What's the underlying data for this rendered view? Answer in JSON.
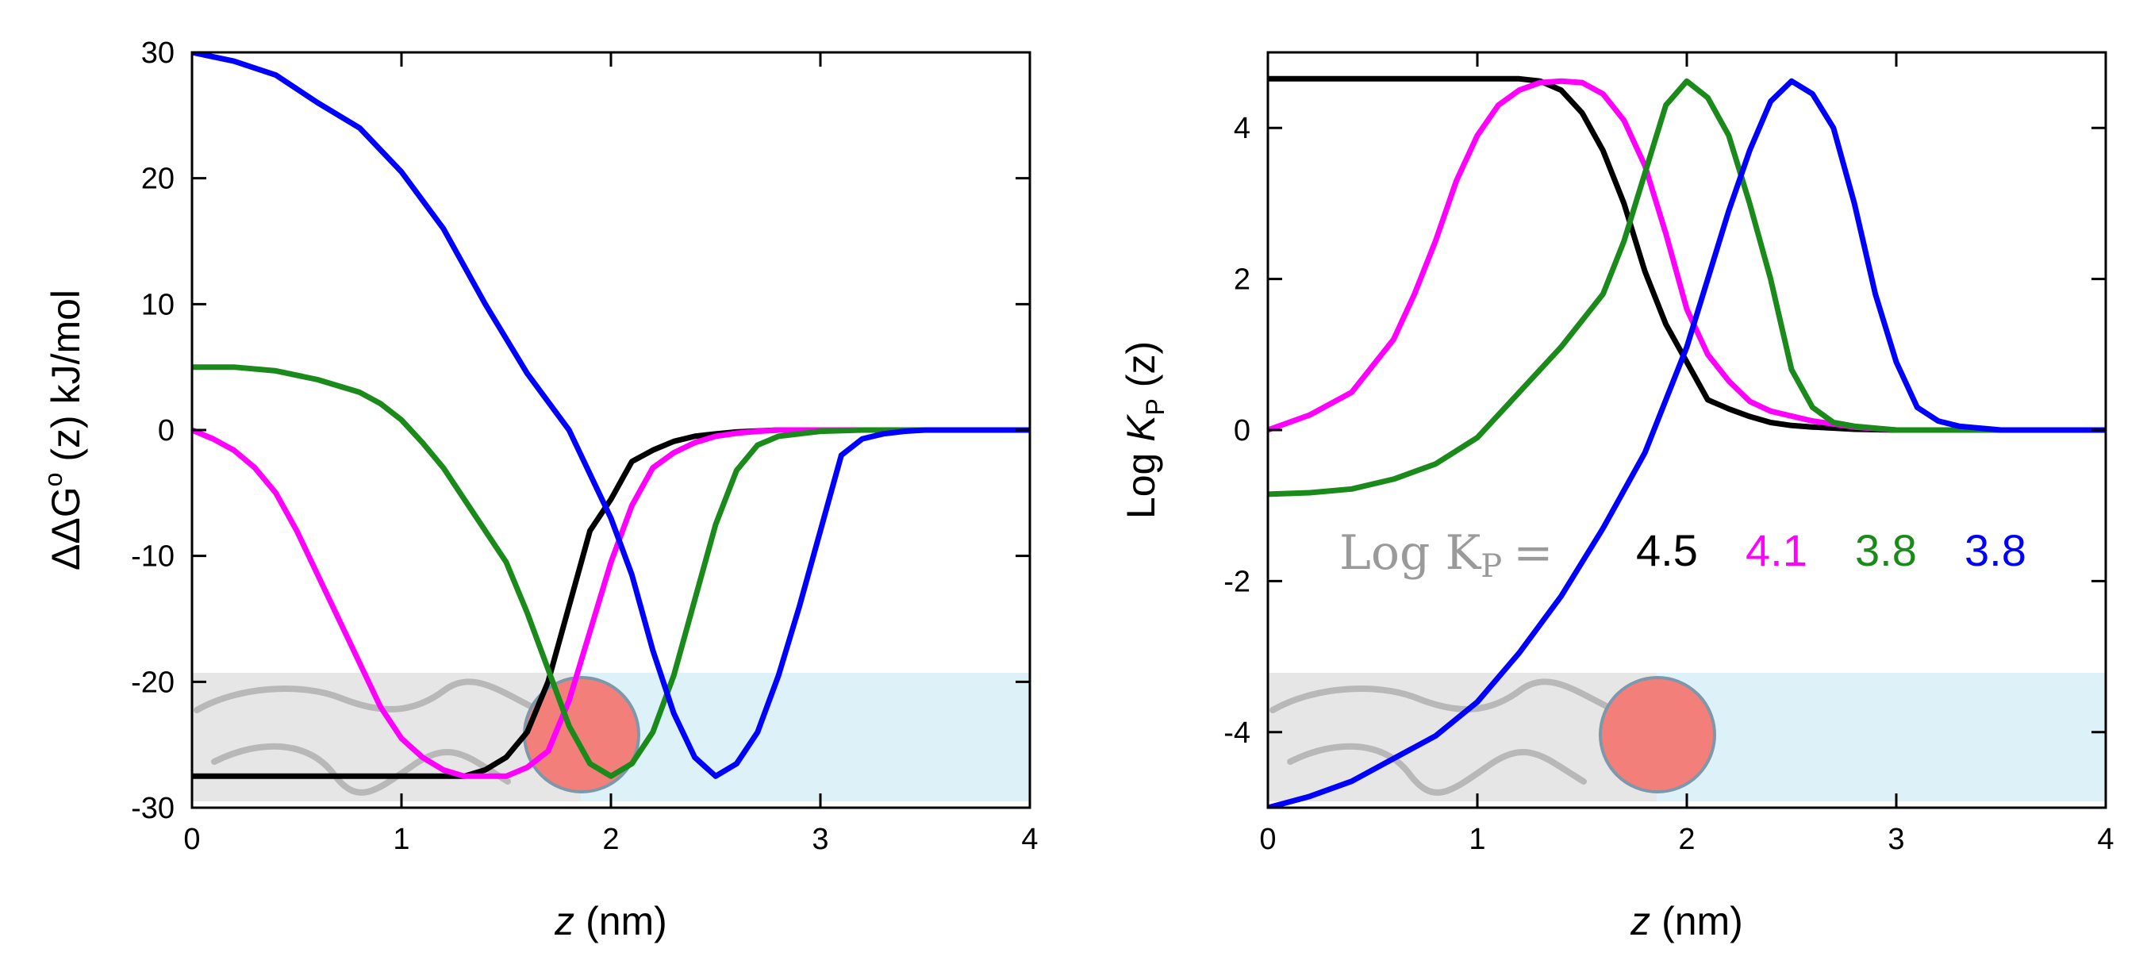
{
  "colors": {
    "black": "#000000",
    "magenta": "#ff00ff",
    "green": "#1a8a1a",
    "blue": "#0000ff",
    "water": "#dcf2f8",
    "membrane": "#e6e6e6",
    "lipid_tail": "#b8b8b8",
    "headgroup": "#f27f7a",
    "headgroup_stroke": "#7d98aa"
  },
  "icons": [
    "lipid-tails-illustration",
    "headgroup-circle"
  ],
  "chart_data": [
    {
      "type": "line",
      "xlabel_var": "z",
      "xlabel_unit": "(nm)",
      "ylabel_main": "ΔΔG",
      "ylabel_sup": "o",
      "ylabel_rest": " (z) kJ/mol",
      "xlim": [
        0,
        4
      ],
      "ylim": [
        -30,
        30
      ],
      "x_ticks": [
        "0",
        "1",
        "2",
        "3",
        "4"
      ],
      "y_ticks": [
        "30",
        "20",
        "10",
        "0",
        "-10",
        "-20",
        "-30"
      ],
      "grid": false,
      "series": [
        {
          "color": "black",
          "x": [
            0,
            0.5,
            1.0,
            1.3,
            1.4,
            1.5,
            1.6,
            1.7,
            1.8,
            1.9,
            2.0,
            2.1,
            2.2,
            2.3,
            2.4,
            2.5,
            2.6,
            2.8,
            3.0,
            4.0
          ],
          "y": [
            -27.5,
            -27.5,
            -27.5,
            -27.5,
            -27.0,
            -26.0,
            -24.0,
            -20.0,
            -14.0,
            -8.0,
            -5.5,
            -2.5,
            -1.6,
            -0.9,
            -0.5,
            -0.3,
            -0.15,
            0.0,
            0.0,
            0.0
          ]
        },
        {
          "color": "magenta",
          "x": [
            0,
            0.1,
            0.2,
            0.3,
            0.4,
            0.5,
            0.6,
            0.7,
            0.8,
            0.9,
            1.0,
            1.1,
            1.2,
            1.3,
            1.4,
            1.5,
            1.6,
            1.7,
            1.8,
            1.9,
            2.0,
            2.1,
            2.2,
            2.3,
            2.4,
            2.5,
            2.6,
            2.7,
            2.8,
            3.0,
            4.0
          ],
          "y": [
            0.0,
            -0.7,
            -1.6,
            -3.0,
            -5.0,
            -8.0,
            -11.5,
            -15.0,
            -18.5,
            -22.0,
            -24.5,
            -26.0,
            -27.0,
            -27.5,
            -27.5,
            -27.5,
            -26.8,
            -25.5,
            -21.5,
            -16.0,
            -10.5,
            -6.0,
            -3.0,
            -1.8,
            -1.0,
            -0.5,
            -0.25,
            -0.1,
            0.0,
            0.0,
            0.0
          ]
        },
        {
          "color": "green",
          "x": [
            0,
            0.2,
            0.4,
            0.6,
            0.8,
            0.9,
            1.0,
            1.1,
            1.2,
            1.3,
            1.4,
            1.5,
            1.6,
            1.7,
            1.8,
            1.9,
            2.0,
            2.1,
            2.2,
            2.3,
            2.4,
            2.5,
            2.6,
            2.7,
            2.8,
            3.0,
            3.2,
            4.0
          ],
          "y": [
            5.0,
            5.0,
            4.7,
            4.0,
            3.0,
            2.1,
            0.8,
            -1.0,
            -3.0,
            -5.5,
            -8.0,
            -10.5,
            -14.5,
            -19.0,
            -23.5,
            -26.5,
            -27.5,
            -26.5,
            -24.0,
            -19.5,
            -13.5,
            -7.5,
            -3.2,
            -1.2,
            -0.5,
            -0.1,
            0.0,
            0.0
          ]
        },
        {
          "color": "blue",
          "x": [
            0,
            0.2,
            0.4,
            0.6,
            0.8,
            1.0,
            1.2,
            1.4,
            1.6,
            1.8,
            1.9,
            2.0,
            2.1,
            2.2,
            2.3,
            2.4,
            2.5,
            2.6,
            2.7,
            2.8,
            2.9,
            3.0,
            3.1,
            3.2,
            3.3,
            3.4,
            3.5,
            4.0
          ],
          "y": [
            30.0,
            29.3,
            28.2,
            26.0,
            24.0,
            20.5,
            16.0,
            10.0,
            4.5,
            0.0,
            -3.5,
            -7.0,
            -11.5,
            -17.5,
            -22.5,
            -26.0,
            -27.5,
            -26.5,
            -24.0,
            -19.5,
            -14.0,
            -8.0,
            -2.0,
            -0.7,
            -0.3,
            -0.1,
            0.0,
            0.0
          ]
        }
      ]
    },
    {
      "type": "line",
      "xlabel_var": "z",
      "xlabel_unit": "(nm)",
      "ylabel_pre": "Log ",
      "ylabel_var": "K",
      "ylabel_sub": "P",
      "ylabel_rest": " (z)",
      "xlim": [
        0,
        4
      ],
      "ylim": [
        -5,
        5
      ],
      "x_ticks": [
        "0",
        "1",
        "2",
        "3",
        "4"
      ],
      "y_ticks": [
        "4",
        "2",
        "0",
        "-2",
        "-4"
      ],
      "grid": false,
      "legend_prefix": "Log K",
      "legend_prefix_sub": "P",
      "legend_prefix_eq": "=",
      "legend_values": [
        {
          "value": "4.5",
          "color": "black"
        },
        {
          "value": "4.1",
          "color": "magenta"
        },
        {
          "value": "3.8",
          "color": "green"
        },
        {
          "value": "3.8",
          "color": "blue"
        }
      ],
      "series": [
        {
          "color": "black",
          "x": [
            0,
            0.5,
            1.0,
            1.2,
            1.3,
            1.4,
            1.5,
            1.6,
            1.7,
            1.8,
            1.9,
            2.0,
            2.1,
            2.2,
            2.3,
            2.4,
            2.5,
            2.6,
            2.8,
            3.0,
            4.0
          ],
          "y": [
            4.65,
            4.65,
            4.65,
            4.65,
            4.62,
            4.5,
            4.2,
            3.7,
            3.0,
            2.1,
            1.4,
            0.9,
            0.4,
            0.28,
            0.18,
            0.1,
            0.06,
            0.04,
            0.01,
            0.0,
            0.0
          ]
        },
        {
          "color": "magenta",
          "x": [
            0,
            0.2,
            0.4,
            0.6,
            0.7,
            0.8,
            0.9,
            1.0,
            1.1,
            1.2,
            1.3,
            1.4,
            1.5,
            1.6,
            1.7,
            1.8,
            1.9,
            2.0,
            2.1,
            2.2,
            2.3,
            2.4,
            2.6,
            2.8,
            3.0,
            4.0
          ],
          "y": [
            0.0,
            0.2,
            0.5,
            1.2,
            1.8,
            2.5,
            3.3,
            3.9,
            4.3,
            4.5,
            4.6,
            4.62,
            4.6,
            4.45,
            4.1,
            3.5,
            2.6,
            1.6,
            1.0,
            0.65,
            0.38,
            0.25,
            0.12,
            0.04,
            0.0,
            0.0
          ]
        },
        {
          "color": "green",
          "x": [
            0,
            0.2,
            0.4,
            0.6,
            0.8,
            1.0,
            1.2,
            1.4,
            1.6,
            1.7,
            1.8,
            1.9,
            2.0,
            2.1,
            2.2,
            2.3,
            2.4,
            2.5,
            2.6,
            2.7,
            2.8,
            3.0,
            3.2,
            4.0
          ],
          "y": [
            -0.85,
            -0.83,
            -0.78,
            -0.65,
            -0.45,
            -0.1,
            0.5,
            1.1,
            1.8,
            2.5,
            3.4,
            4.3,
            4.62,
            4.4,
            3.9,
            3.0,
            2.0,
            0.8,
            0.3,
            0.1,
            0.05,
            0.0,
            0.0,
            0.0
          ]
        },
        {
          "color": "blue",
          "x": [
            0,
            0.2,
            0.4,
            0.6,
            0.8,
            1.0,
            1.2,
            1.4,
            1.6,
            1.8,
            2.0,
            2.1,
            2.2,
            2.3,
            2.4,
            2.5,
            2.6,
            2.7,
            2.8,
            2.9,
            3.0,
            3.1,
            3.2,
            3.3,
            3.5,
            4.0
          ],
          "y": [
            -5.0,
            -4.85,
            -4.65,
            -4.35,
            -4.05,
            -3.6,
            -2.95,
            -2.2,
            -1.3,
            -0.3,
            1.1,
            2.0,
            2.9,
            3.7,
            4.35,
            4.62,
            4.45,
            4.0,
            3.0,
            1.8,
            0.9,
            0.3,
            0.12,
            0.05,
            0.0,
            0.0
          ]
        }
      ]
    }
  ]
}
